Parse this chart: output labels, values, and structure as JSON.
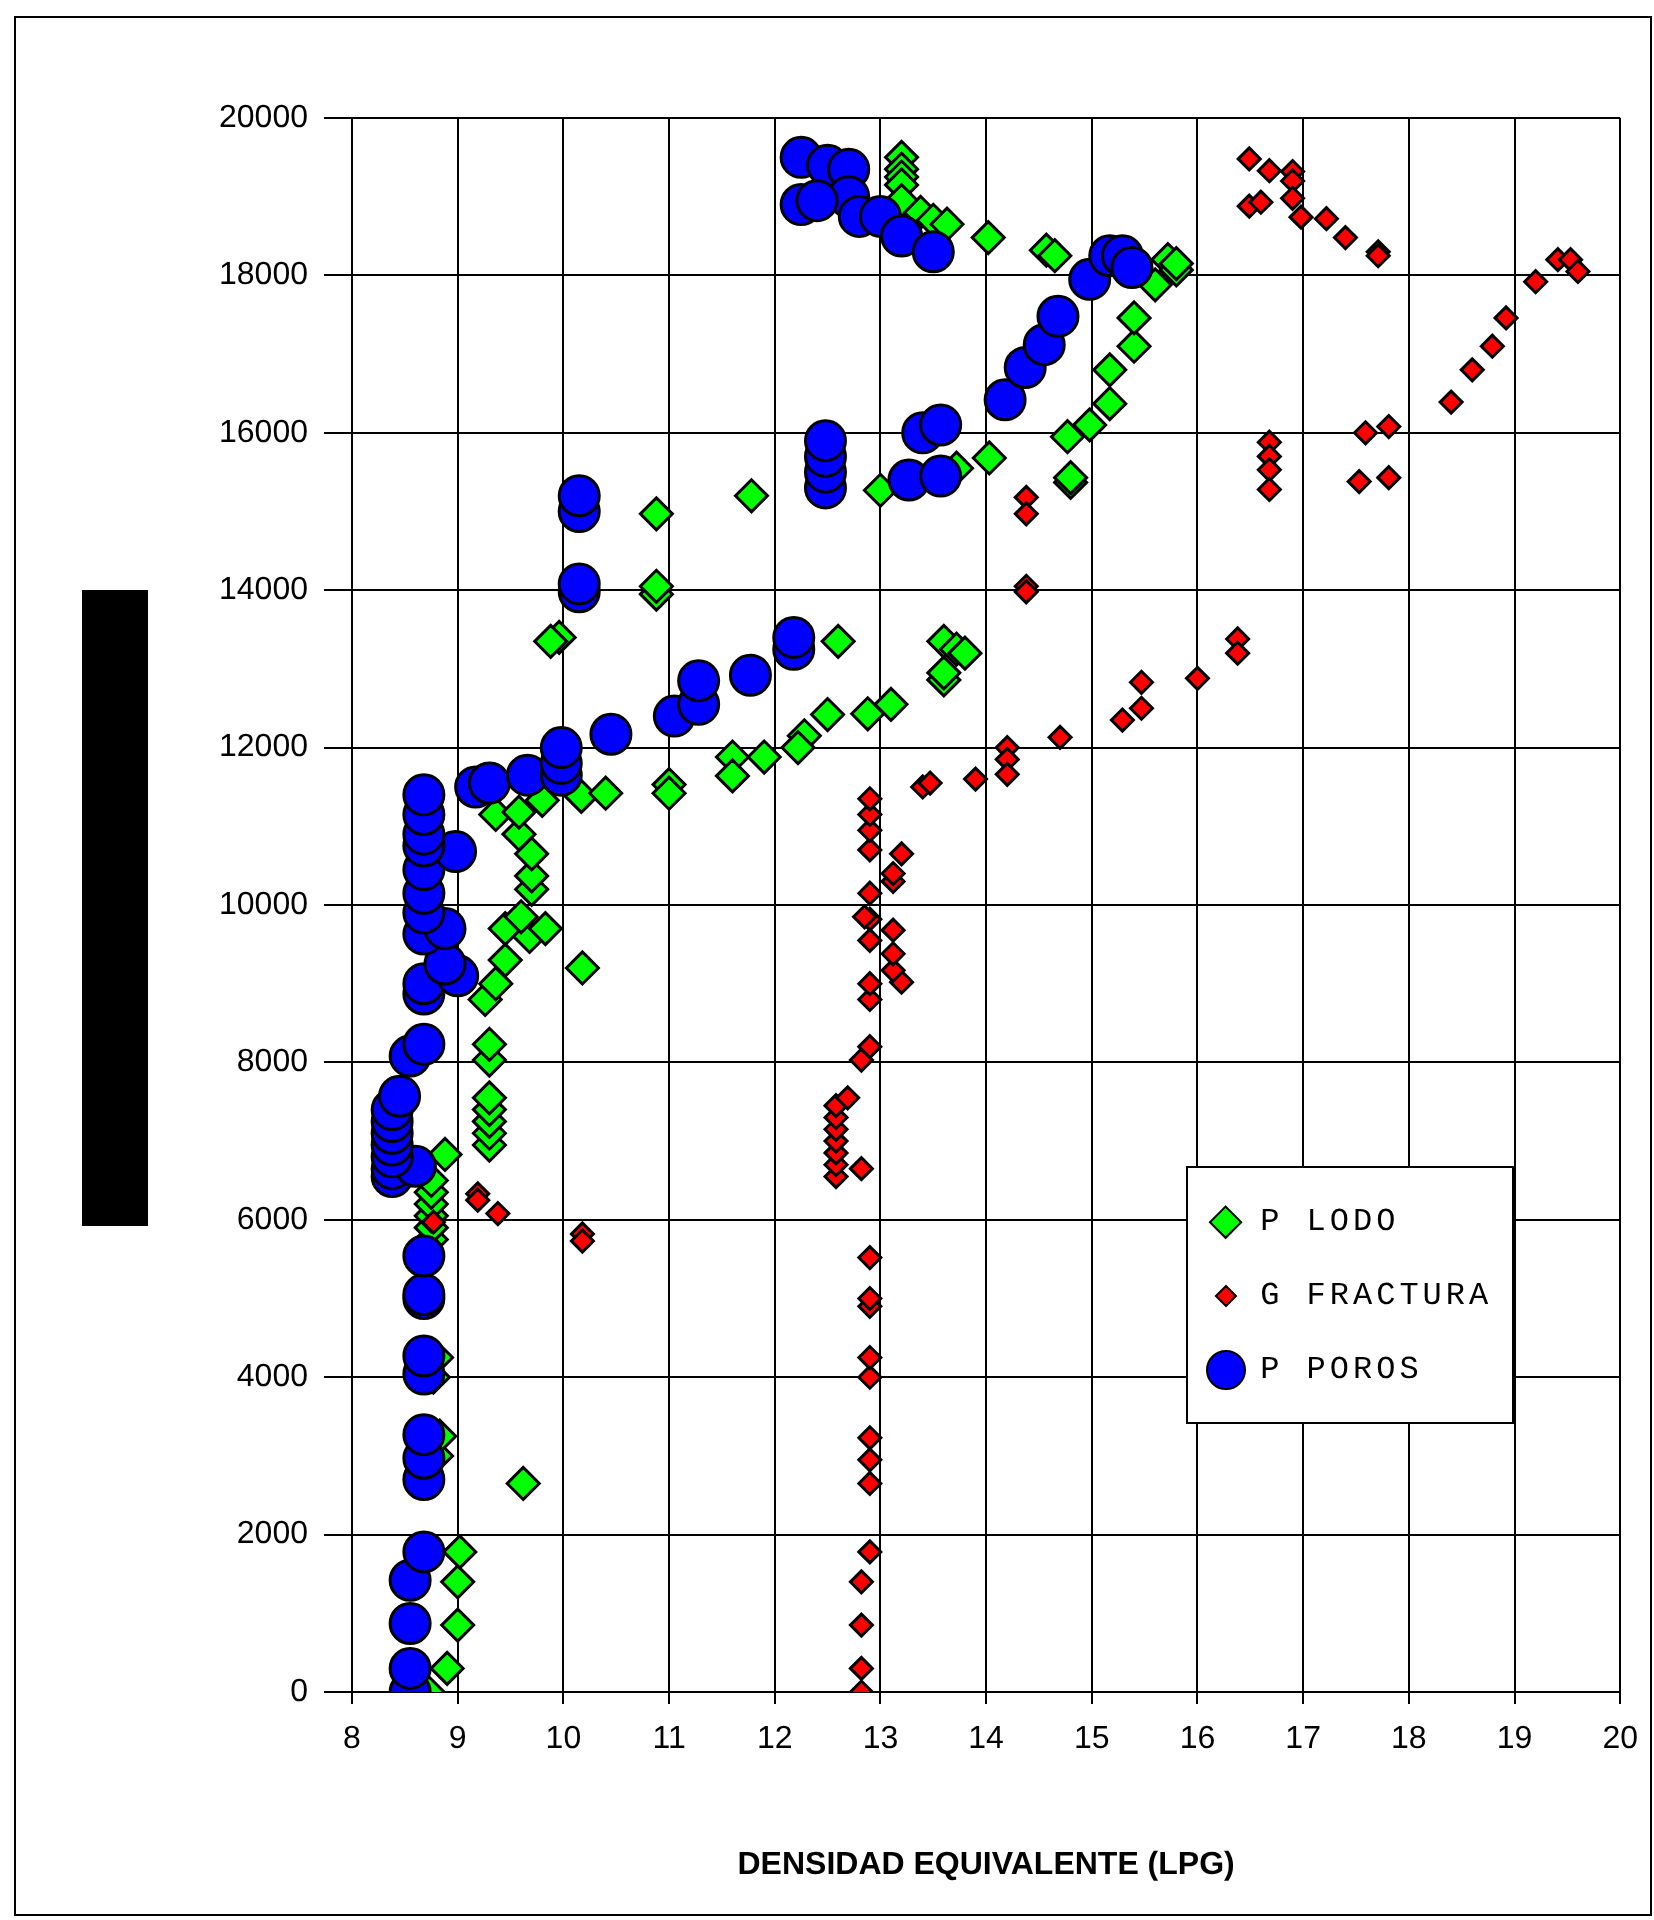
{
  "chart_data": {
    "type": "scatter",
    "xlabel": "DENSIDAD EQUIVALENTE (LPG)",
    "xlim": [
      8,
      20
    ],
    "xticks": [
      8,
      9,
      10,
      11,
      12,
      13,
      14,
      15,
      16,
      17,
      18,
      19,
      20
    ],
    "ylim": [
      0,
      20000
    ],
    "yticks": [
      0,
      2000,
      4000,
      6000,
      8000,
      10000,
      12000,
      14000,
      16000,
      18000,
      20000
    ],
    "grid": true,
    "legend": "bottom right",
    "series": [
      {
        "name": "P LODO",
        "color": "#00ff00",
        "marker": "diamond",
        "x": [
          8.72,
          8.9,
          9.0,
          9.0,
          9.02,
          9.62,
          8.8,
          8.83,
          8.77,
          8.8,
          8.75,
          8.75,
          8.75,
          8.75,
          8.75,
          8.75,
          8.88,
          9.3,
          9.3,
          9.3,
          9.3,
          9.3,
          9.3,
          9.3,
          9.26,
          9.36,
          10.18,
          9.45,
          9.45,
          9.68,
          9.83,
          9.6,
          9.7,
          9.7,
          9.7,
          9.58,
          9.36,
          9.58,
          9.8,
          10.17,
          10.4,
          11.0,
          11.0,
          11.6,
          11.6,
          11.9,
          12.28,
          12.22,
          12.5,
          12.88,
          13.1,
          13.6,
          13.6,
          13.6,
          13.72,
          13.8,
          12.6,
          9.96,
          9.88,
          10.88,
          10.88,
          10.88,
          11.78,
          13.0,
          13.72,
          14.03,
          14.8,
          14.8,
          14.77,
          14.98,
          15.17,
          15.17,
          15.4,
          15.4,
          15.6,
          15.72,
          15.8,
          15.8,
          14.02,
          14.57,
          14.65,
          13.2,
          13.2,
          13.2,
          13.2,
          13.2,
          13.38,
          13.5,
          13.63
        ],
        "values": [
          0,
          300,
          850,
          1400,
          1780,
          2650,
          3000,
          3250,
          4000,
          4250,
          5750,
          5900,
          6050,
          6200,
          6350,
          6500,
          6830,
          6950,
          7100,
          7250,
          7400,
          7550,
          8030,
          8230,
          8800,
          9000,
          9200,
          9300,
          9700,
          9600,
          9700,
          9850,
          10200,
          10370,
          10650,
          10900,
          11150,
          11180,
          11330,
          11380,
          11420,
          11530,
          11420,
          11880,
          11640,
          11880,
          12150,
          12000,
          12420,
          12430,
          12550,
          12860,
          12950,
          13350,
          13250,
          13200,
          13350,
          13400,
          13350,
          13950,
          14050,
          14970,
          15200,
          15270,
          15550,
          15680,
          15370,
          15430,
          15950,
          16100,
          16370,
          16800,
          17100,
          17460,
          17880,
          18200,
          18070,
          18150,
          18480,
          18320,
          18250,
          19500,
          19350,
          19250,
          19150,
          18950,
          18800,
          18700,
          18650
        ]
      },
      {
        "name": "G FRACTURA",
        "color": "#ff0000",
        "marker": "diamond",
        "x": [
          12.82,
          12.82,
          12.82,
          12.82,
          12.9,
          12.9,
          12.9,
          12.9,
          12.9,
          12.9,
          12.9,
          12.9,
          12.9,
          12.82,
          12.58,
          12.58,
          12.58,
          12.58,
          12.58,
          12.58,
          12.58,
          12.69,
          12.82,
          12.9,
          12.9,
          12.9,
          13.2,
          13.12,
          13.12,
          13.12,
          12.9,
          12.9,
          12.85,
          12.9,
          13.12,
          13.12,
          13.2,
          12.9,
          12.9,
          12.9,
          12.9,
          13.4,
          13.47,
          13.9,
          14.2,
          14.2,
          14.2,
          14.7,
          15.29,
          15.47,
          15.47,
          16.0,
          16.38,
          16.38,
          14.38,
          14.38,
          14.38,
          14.38,
          16.68,
          16.68,
          16.68,
          16.68,
          17.53,
          17.59,
          17.81,
          17.81,
          18.4,
          18.6,
          18.79,
          18.92,
          19.2,
          19.41,
          19.53,
          19.6,
          16.49,
          16.68,
          16.9,
          16.9,
          16.9,
          16.49,
          16.6,
          16.98,
          17.22,
          17.4,
          17.71,
          17.71,
          9.19,
          9.19,
          9.38,
          10.18,
          10.18,
          8.77
        ],
        "values": [
          0,
          300,
          850,
          1400,
          1780,
          2650,
          2950,
          3230,
          4000,
          4250,
          4900,
          5000,
          5520,
          6650,
          6550,
          6700,
          6850,
          7000,
          7150,
          7300,
          7450,
          7550,
          8030,
          8200,
          8800,
          9000,
          9020,
          9170,
          9380,
          9680,
          9550,
          9820,
          9850,
          10150,
          10300,
          10400,
          10650,
          10700,
          10950,
          11150,
          11350,
          11500,
          11550,
          11600,
          12000,
          11850,
          11660,
          12130,
          12350,
          12500,
          12830,
          12880,
          13380,
          13200,
          15180,
          14970,
          14050,
          13980,
          15880,
          15700,
          15530,
          15280,
          15380,
          16000,
          16080,
          15430,
          16390,
          16800,
          17100,
          17460,
          17920,
          18200,
          18200,
          18050,
          19480,
          19330,
          19320,
          19200,
          18980,
          18880,
          18930,
          18740,
          18720,
          18480,
          18300,
          18250,
          6330,
          6250,
          6080,
          5820,
          5730,
          5970
        ]
      },
      {
        "name": "P POROS",
        "color": "#0000ff",
        "marker": "circle",
        "x": [
          8.55,
          8.55,
          8.55,
          8.55,
          8.68,
          8.68,
          8.68,
          8.68,
          8.68,
          8.68,
          8.68,
          8.68,
          8.68,
          8.38,
          8.38,
          8.6,
          8.38,
          8.38,
          8.38,
          8.38,
          8.38,
          8.45,
          8.55,
          8.68,
          8.68,
          8.68,
          9.0,
          8.88,
          8.68,
          8.88,
          8.68,
          8.68,
          8.68,
          8.98,
          8.68,
          8.68,
          8.68,
          8.68,
          9.17,
          9.3,
          9.66,
          9.98,
          9.98,
          9.98,
          10.45,
          11.05,
          11.28,
          11.28,
          11.77,
          12.18,
          12.18,
          10.15,
          10.15,
          10.15,
          10.15,
          12.48,
          12.48,
          12.48,
          12.48,
          13.27,
          13.4,
          13.57,
          13.57,
          14.18,
          14.37,
          14.55,
          14.68,
          14.98,
          15.17,
          15.29,
          15.38,
          12.25,
          12.5,
          12.7,
          12.7,
          12.25,
          12.4,
          12.8,
          13.0,
          13.2,
          13.5
        ],
        "values": [
          0,
          300,
          870,
          1420,
          1780,
          2700,
          2970,
          3270,
          4040,
          4270,
          5000,
          5050,
          5540,
          6550,
          6650,
          6680,
          6800,
          6950,
          7100,
          7250,
          7400,
          7570,
          8080,
          8230,
          8870,
          9000,
          9100,
          9250,
          9630,
          9700,
          9900,
          10150,
          10450,
          10680,
          10750,
          10900,
          11150,
          11400,
          11500,
          11550,
          11650,
          11650,
          11800,
          12000,
          12170,
          12400,
          12550,
          12850,
          12920,
          13250,
          13400,
          13980,
          14080,
          15000,
          15200,
          15300,
          15500,
          15700,
          15900,
          15400,
          16000,
          16100,
          15450,
          16420,
          16830,
          17120,
          17480,
          17950,
          18250,
          18250,
          18100,
          19500,
          19400,
          19350,
          19000,
          18900,
          18950,
          18750,
          18750,
          18500,
          18300
        ]
      }
    ]
  }
}
